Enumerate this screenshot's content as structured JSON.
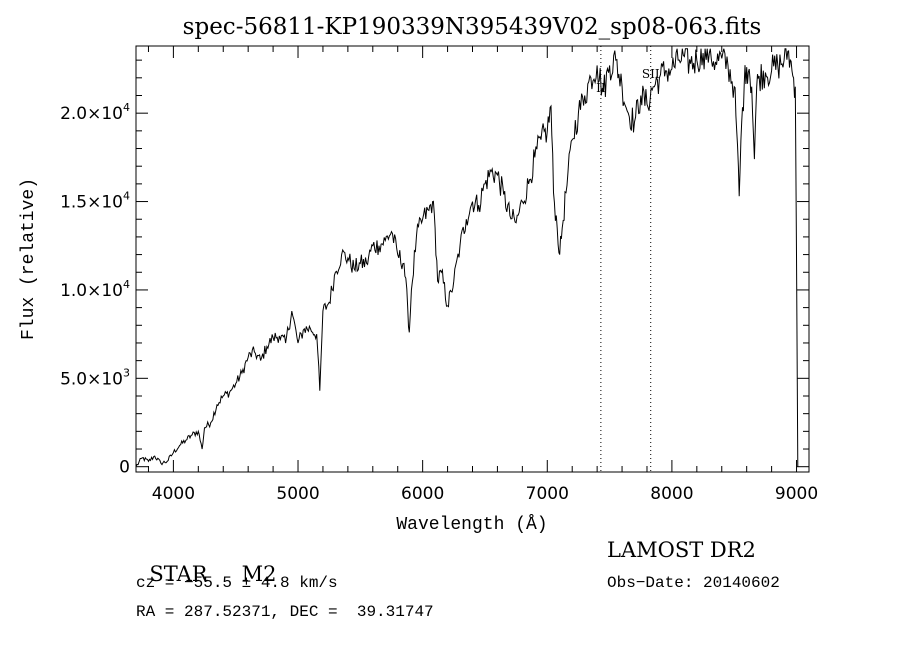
{
  "chart_data": {
    "type": "line",
    "title": "spec-56811-KP190339N395439V02_sp08-063.fits",
    "xlabel": "Wavelength (Å)",
    "ylabel": "Flux (relative)",
    "xlim": [
      3700,
      9100
    ],
    "ylim": [
      -300,
      23800
    ],
    "x_ticks": [
      4000,
      5000,
      6000,
      7000,
      8000,
      9000
    ],
    "x_tick_labels": [
      "4000",
      "5000",
      "6000",
      "7000",
      "8000",
      "9000"
    ],
    "y_ticks": [
      0,
      5000,
      10000,
      15000,
      20000
    ],
    "y_tick_labels": [
      {
        "mantissa": "0",
        "exp": ""
      },
      {
        "mantissa": "5.0×10",
        "exp": "3"
      },
      {
        "mantissa": "1.0×10",
        "exp": "4"
      },
      {
        "mantissa": "1.5×10",
        "exp": "4"
      },
      {
        "mantissa": "2.0×10",
        "exp": "4"
      }
    ],
    "grid": false,
    "line_color": "#000000",
    "series": [
      {
        "x": [
          3700,
          3750,
          3800,
          3850,
          3900,
          3950,
          4000,
          4050,
          4100,
          4150,
          4200,
          4230,
          4250,
          4300,
          4350,
          4400,
          4450,
          4500,
          4550,
          4600,
          4650,
          4700,
          4750,
          4800,
          4850,
          4900,
          4950,
          5000,
          5050,
          5100,
          5150,
          5175,
          5200,
          5250,
          5300,
          5350,
          5400,
          5450,
          5500,
          5550,
          5600,
          5650,
          5700,
          5750,
          5800,
          5850,
          5880,
          5893,
          5910,
          5950,
          6000,
          6050,
          6080,
          6100,
          6120,
          6150,
          6200,
          6230,
          6250,
          6300,
          6350,
          6400,
          6450,
          6500,
          6550,
          6600,
          6650,
          6700,
          6750,
          6800,
          6850,
          6900,
          6950,
          7000,
          7030,
          7050,
          7080,
          7100,
          7120,
          7150,
          7200,
          7250,
          7300,
          7350,
          7400,
          7450,
          7500,
          7550,
          7600,
          7650,
          7700,
          7750,
          7800,
          7850,
          7900,
          7950,
          8000,
          8050,
          8100,
          8150,
          8200,
          8250,
          8300,
          8350,
          8400,
          8450,
          8500,
          8520,
          8540,
          8560,
          8580,
          8600,
          8620,
          8640,
          8662,
          8680,
          8700,
          8750,
          8800,
          8850,
          8900,
          8930,
          8950,
          8970,
          8990,
          9000,
          9010
        ],
        "y": [
          0,
          500,
          300,
          600,
          200,
          300,
          800,
          1200,
          1500,
          1800,
          2000,
          1000,
          2200,
          2500,
          3500,
          4000,
          4200,
          4700,
          5300,
          6200,
          6500,
          6000,
          6800,
          7300,
          7400,
          7000,
          8800,
          7000,
          7800,
          7800,
          7500,
          4300,
          8800,
          9300,
          11000,
          12000,
          11800,
          11200,
          11500,
          11500,
          12500,
          12500,
          12800,
          13300,
          12000,
          11500,
          9000,
          7600,
          10000,
          13000,
          14000,
          14500,
          15000,
          13500,
          10500,
          11000,
          9100,
          9900,
          10500,
          12500,
          14000,
          15000,
          14800,
          16000,
          16700,
          16500,
          15400,
          14200,
          13800,
          15000,
          16000,
          17500,
          18500,
          19000,
          20400,
          15500,
          13500,
          12000,
          13500,
          15500,
          18500,
          20000,
          21000,
          22000,
          22700,
          21200,
          22700,
          23000,
          21500,
          20000,
          19500,
          21000,
          20500,
          21500,
          22000,
          22400,
          22500,
          23000,
          23200,
          22800,
          23000,
          23400,
          23400,
          22900,
          23100,
          22700,
          21500,
          19000,
          15300,
          19500,
          21600,
          22600,
          22500,
          21500,
          17400,
          21500,
          22100,
          22300,
          22400,
          22700,
          23000,
          23500,
          23000,
          22100,
          21500,
          12000,
          0
        ]
      }
    ],
    "line_markers": [
      {
        "x": 7430,
        "label": "II",
        "label_y": 21200
      },
      {
        "x": 7830,
        "label": "SII",
        "label_y": 22000
      }
    ]
  },
  "info": {
    "object_class": "STAR",
    "subclass": "M2",
    "survey": "LAMOST DR2",
    "redshift": "cz = −55.5 ± 4.8 km/s",
    "obs_date": "Obs−Date: 20140602",
    "coords": "RA = 287.52371, DEC =  39.31747"
  }
}
